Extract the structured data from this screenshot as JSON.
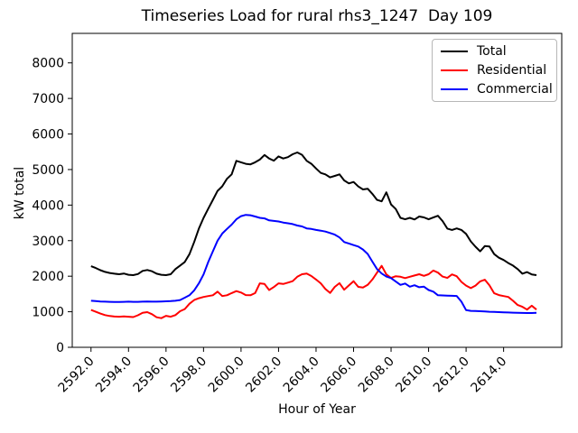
{
  "chart_data": {
    "type": "line",
    "title": "Timeseries Load for rural rhs3_1247  Day 109",
    "xlabel": "Hour of Year",
    "ylabel": "kW total",
    "xlim": [
      2591.0,
      2617.1
    ],
    "ylim": [
      0,
      8830
    ],
    "x_ticks": [
      2592,
      2594,
      2596,
      2598,
      2600,
      2602,
      2604,
      2606,
      2608,
      2610,
      2612,
      2614
    ],
    "x_tick_labels": [
      "2592.0",
      "2594.0",
      "2596.0",
      "2598.0",
      "2600.0",
      "2602.0",
      "2604.0",
      "2606.0",
      "2608.0",
      "2610.0",
      "2612.0",
      "2614.0"
    ],
    "y_ticks": [
      0,
      1000,
      2000,
      3000,
      4000,
      5000,
      6000,
      7000,
      8000
    ],
    "grid": false,
    "legend_position": "upper right",
    "x_start": 2592.0,
    "x_step": 0.25,
    "series": [
      {
        "name": "Total",
        "color": "#000000",
        "values": [
          2280,
          2230,
          2170,
          2120,
          2090,
          2070,
          2055,
          2075,
          2040,
          2030,
          2060,
          2150,
          2175,
          2140,
          2070,
          2040,
          2030,
          2055,
          2200,
          2300,
          2400,
          2620,
          2960,
          3340,
          3640,
          3900,
          4145,
          4400,
          4530,
          4740,
          4865,
          5245,
          5205,
          5160,
          5145,
          5205,
          5280,
          5410,
          5310,
          5250,
          5370,
          5310,
          5350,
          5430,
          5480,
          5415,
          5245,
          5160,
          5030,
          4905,
          4865,
          4780,
          4820,
          4865,
          4695,
          4610,
          4650,
          4525,
          4440,
          4460,
          4315,
          4145,
          4105,
          4360,
          4020,
          3890,
          3640,
          3600,
          3640,
          3595,
          3680,
          3655,
          3600,
          3650,
          3700,
          3550,
          3340,
          3300,
          3345,
          3300,
          3190,
          2980,
          2830,
          2700,
          2850,
          2835,
          2620,
          2520,
          2455,
          2370,
          2300,
          2200,
          2070,
          2115,
          2050,
          2030
        ]
      },
      {
        "name": "Residential",
        "color": "#ff0000",
        "values": [
          1050,
          1000,
          950,
          905,
          880,
          865,
          860,
          870,
          860,
          850,
          900,
          970,
          990,
          930,
          845,
          820,
          885,
          860,
          905,
          1015,
          1075,
          1225,
          1330,
          1380,
          1415,
          1440,
          1465,
          1565,
          1440,
          1465,
          1525,
          1580,
          1540,
          1470,
          1465,
          1525,
          1800,
          1780,
          1610,
          1695,
          1800,
          1780,
          1820,
          1860,
          1985,
          2055,
          2075,
          2005,
          1905,
          1800,
          1640,
          1530,
          1700,
          1805,
          1620,
          1740,
          1860,
          1700,
          1680,
          1755,
          1905,
          2100,
          2290,
          2050,
          1950,
          2000,
          1985,
          1945,
          1985,
          2020,
          2055,
          2010,
          2055,
          2160,
          2100,
          1990,
          1950,
          2050,
          2000,
          1840,
          1735,
          1665,
          1735,
          1855,
          1900,
          1740,
          1520,
          1470,
          1440,
          1415,
          1310,
          1190,
          1140,
          1060,
          1170,
          1060
        ]
      },
      {
        "name": "Commercial",
        "color": "#0000ff",
        "values": [
          1310,
          1300,
          1290,
          1285,
          1280,
          1275,
          1275,
          1280,
          1285,
          1280,
          1280,
          1285,
          1290,
          1285,
          1285,
          1290,
          1295,
          1300,
          1310,
          1330,
          1395,
          1465,
          1600,
          1800,
          2050,
          2400,
          2700,
          3000,
          3200,
          3330,
          3450,
          3600,
          3690,
          3725,
          3715,
          3680,
          3640,
          3625,
          3570,
          3555,
          3540,
          3510,
          3490,
          3465,
          3425,
          3400,
          3345,
          3330,
          3300,
          3280,
          3255,
          3215,
          3170,
          3090,
          2960,
          2920,
          2875,
          2835,
          2750,
          2625,
          2410,
          2200,
          2075,
          1990,
          1945,
          1850,
          1755,
          1795,
          1705,
          1745,
          1690,
          1705,
          1610,
          1565,
          1465,
          1460,
          1455,
          1450,
          1445,
          1285,
          1045,
          1025,
          1020,
          1015,
          1010,
          1000,
          995,
          990,
          985,
          980,
          975,
          970,
          968,
          965,
          965,
          970
        ]
      }
    ]
  }
}
